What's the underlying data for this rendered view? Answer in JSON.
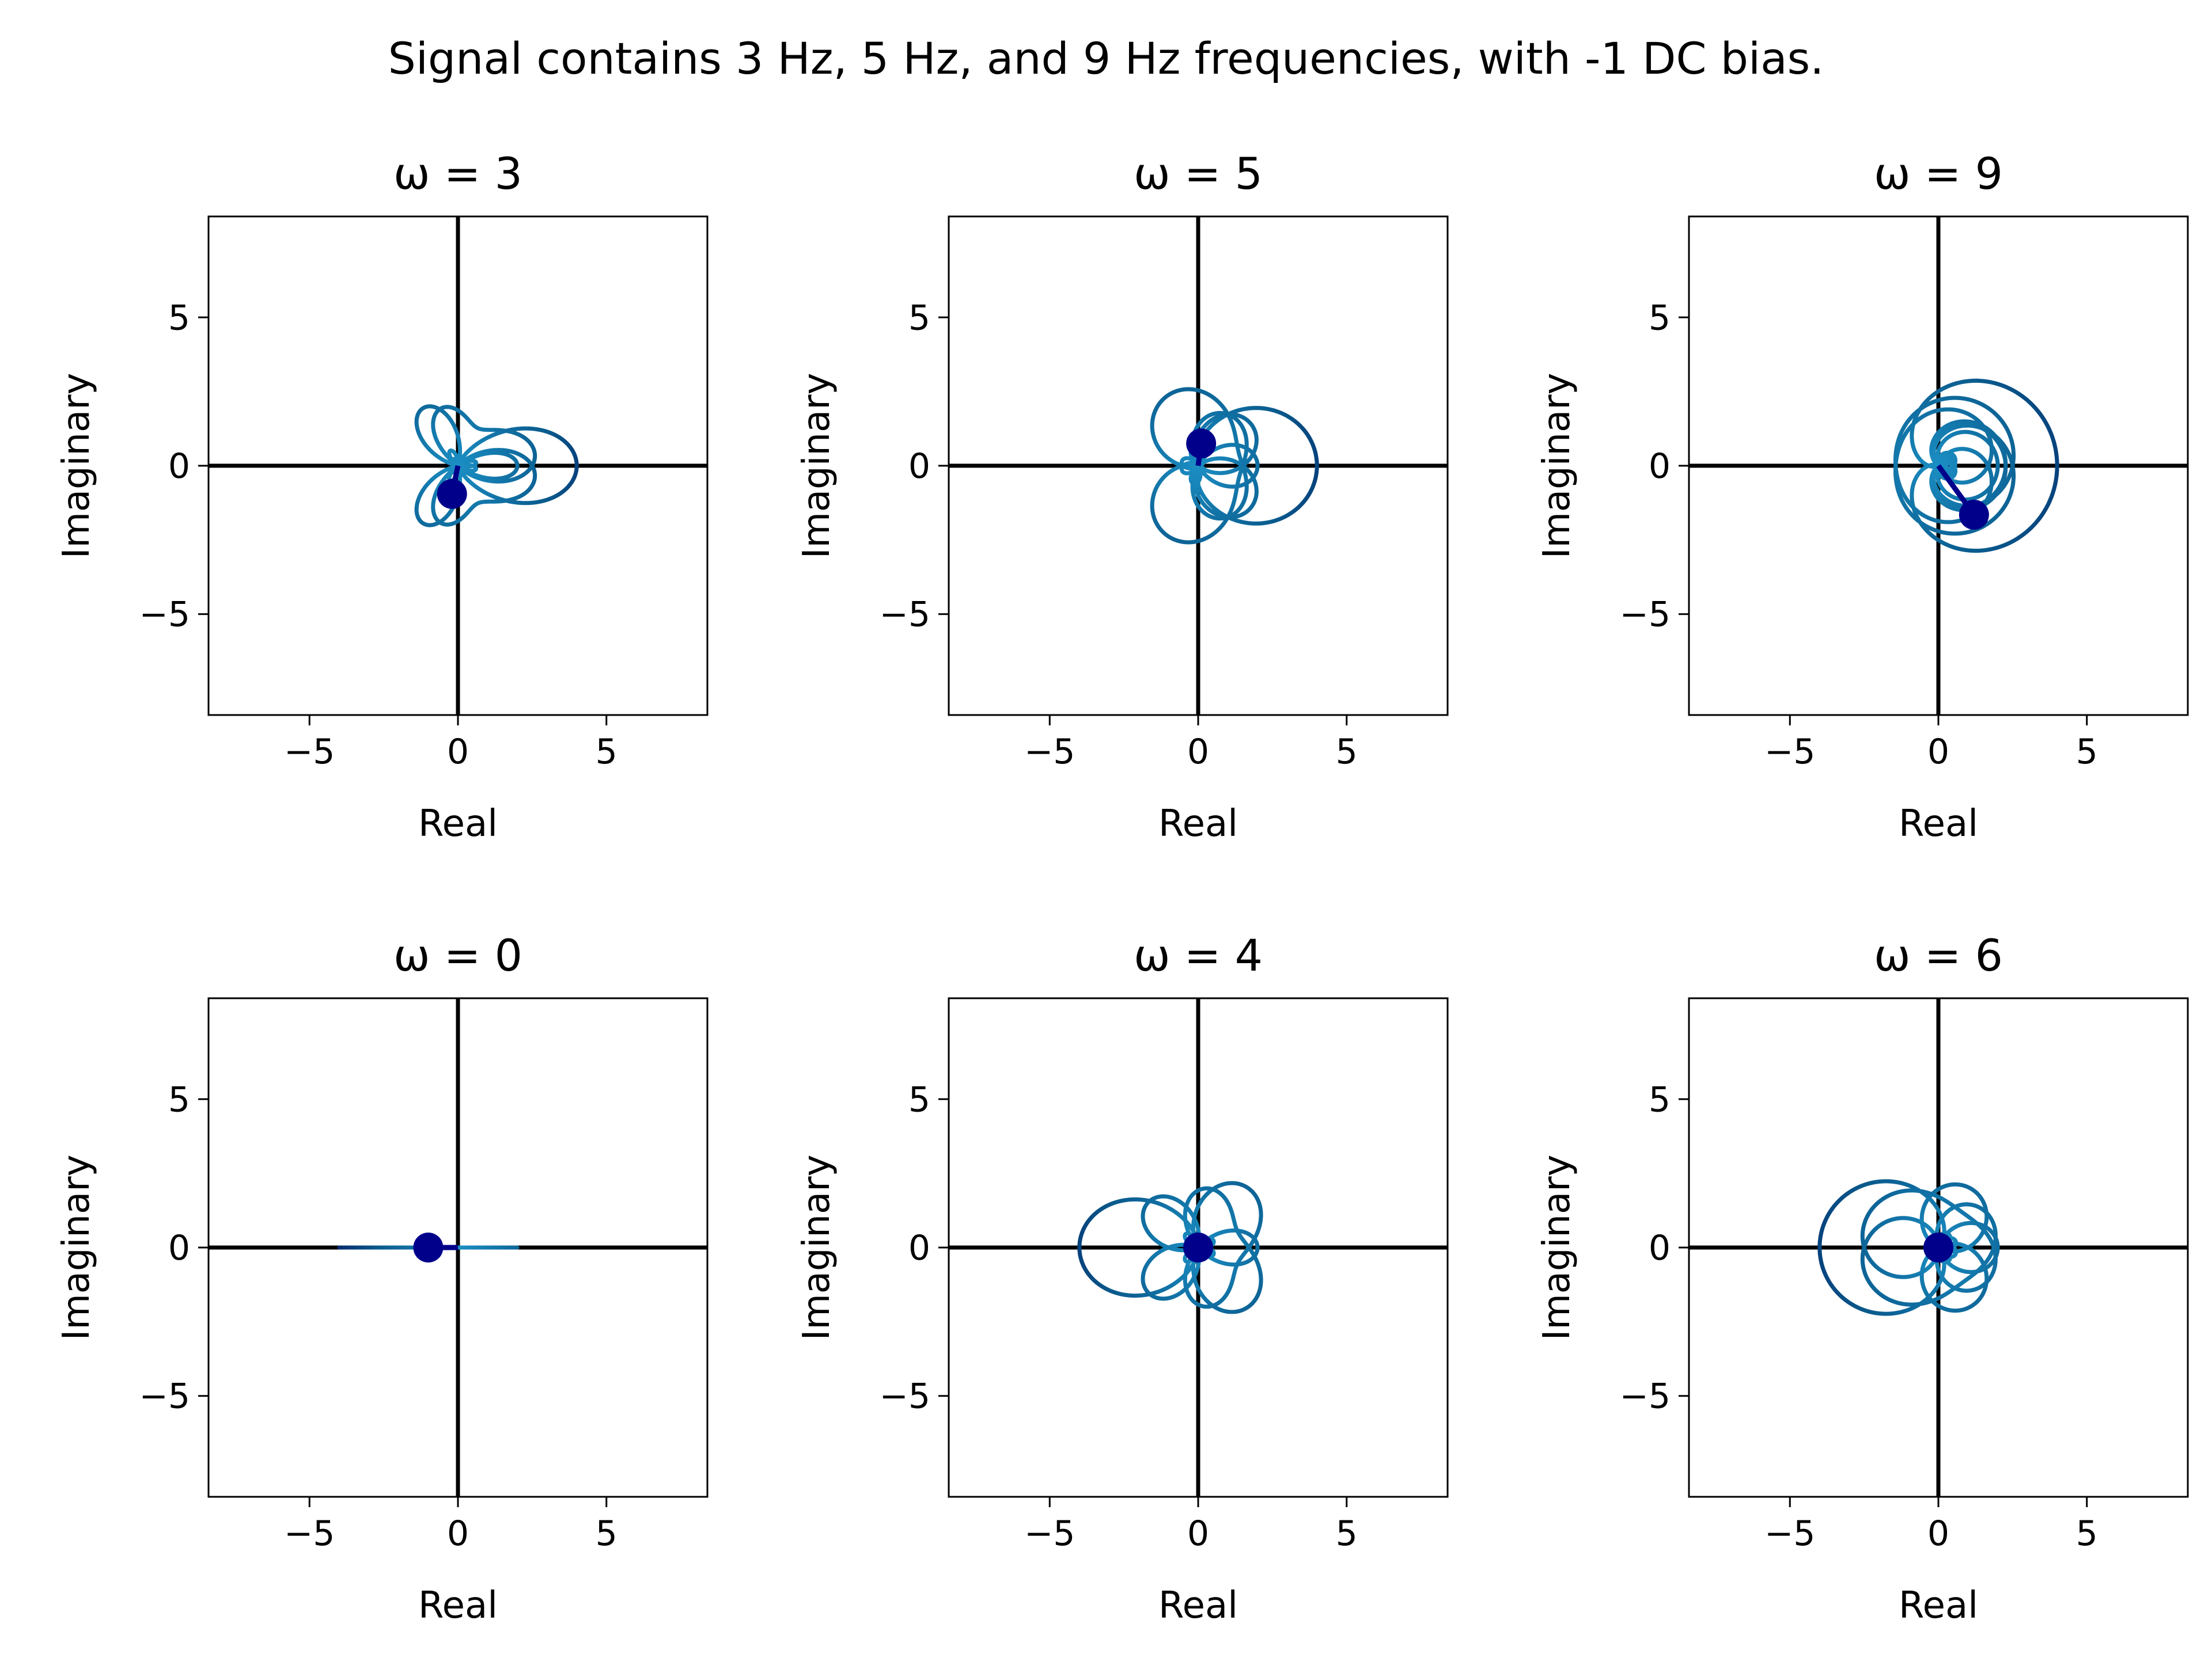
{
  "chart_data": {
    "type": "line",
    "title": "Signal contains 3 Hz, 5 Hz, and 9 Hz frequencies, with -1 DC bias.",
    "signal": {
      "frequencies": [
        3,
        5,
        9
      ],
      "dc_bias": -1
    },
    "grid": false,
    "colors": {
      "curve_dark": "#000f5c",
      "curve_mid": "#0a5a8c",
      "curve_light": "#1b8fc4",
      "curve_green": "#0b7a1e",
      "marker": "#00008b",
      "axes": "#000000"
    },
    "subplots": [
      {
        "title": "ω = 3",
        "omega": 3,
        "xlabel": "Real",
        "ylabel": "Imaginary",
        "xlim": [
          -8.4,
          8.4
        ],
        "ylim": [
          -8.4,
          8.4
        ],
        "xticks": [
          -5,
          0,
          5
        ],
        "yticks": [
          -5,
          0,
          5
        ],
        "center_of_mass": [
          -0.2,
          -0.95
        ]
      },
      {
        "title": "ω = 5",
        "omega": 5,
        "xlabel": "Real",
        "ylabel": "Imaginary",
        "xlim": [
          -8.4,
          8.4
        ],
        "ylim": [
          -8.4,
          8.4
        ],
        "xticks": [
          -5,
          0,
          5
        ],
        "yticks": [
          -5,
          0,
          5
        ],
        "center_of_mass": [
          0.1,
          0.75
        ]
      },
      {
        "title": "ω = 9",
        "omega": 9,
        "xlabel": "Real",
        "ylabel": "Imaginary",
        "xlim": [
          -8.4,
          8.4
        ],
        "ylim": [
          -8.4,
          8.4
        ],
        "xticks": [
          -5,
          0,
          5
        ],
        "yticks": [
          -5,
          0,
          5
        ],
        "center_of_mass": [
          1.2,
          -1.65
        ]
      },
      {
        "title": "ω = 0",
        "omega": 0,
        "xlabel": "Real",
        "ylabel": "Imaginary",
        "xlim": [
          -8.4,
          8.4
        ],
        "ylim": [
          -8.4,
          8.4
        ],
        "xticks": [
          -5,
          0,
          5
        ],
        "yticks": [
          -5,
          0,
          5
        ],
        "center_of_mass": [
          -1.0,
          0.0
        ]
      },
      {
        "title": "ω = 4",
        "omega": 4,
        "xlabel": "Real",
        "ylabel": "Imaginary",
        "xlim": [
          -8.4,
          8.4
        ],
        "ylim": [
          -8.4,
          8.4
        ],
        "xticks": [
          -5,
          0,
          5
        ],
        "yticks": [
          -5,
          0,
          5
        ],
        "center_of_mass": [
          0.0,
          0.0
        ]
      },
      {
        "title": "ω = 6",
        "omega": 6,
        "xlabel": "Real",
        "ylabel": "Imaginary",
        "xlim": [
          -8.4,
          8.4
        ],
        "ylim": [
          -8.4,
          8.4
        ],
        "xticks": [
          -5,
          0,
          5
        ],
        "yticks": [
          -5,
          0,
          5
        ],
        "center_of_mass": [
          0.0,
          0.0
        ]
      }
    ]
  }
}
